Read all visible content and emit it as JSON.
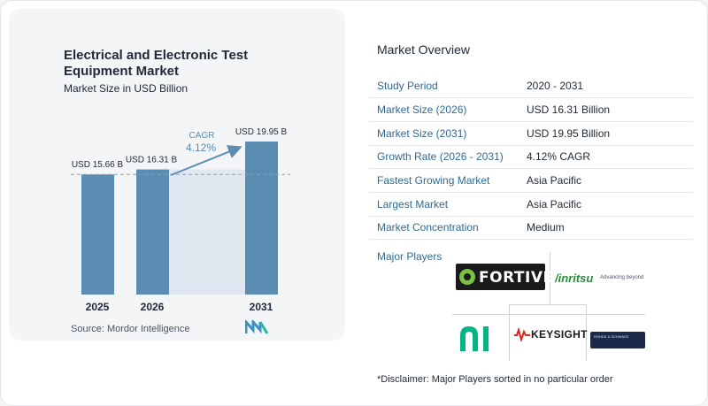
{
  "chart_data": {
    "type": "bar",
    "title": "Electrical and Electronic Test Equipment Market",
    "subtitle": "Market Size in USD Billion",
    "categories": [
      "2025",
      "2026",
      "2031"
    ],
    "values": [
      15.66,
      16.31,
      19.95
    ],
    "value_labels": [
      "USD 15.66 B",
      "USD 16.31 B",
      "USD 19.95 B"
    ],
    "cagr_label": "CAGR",
    "cagr_value": "4.12%",
    "bar_color": "#5b8db3",
    "shade_color": "#dfe8f0",
    "source": "Source:  Mordor Intelligence"
  },
  "overview": {
    "title": "Market Overview",
    "rows": [
      {
        "key": "Study Period",
        "value": "2020 - 2031"
      },
      {
        "key": "Market Size (2026)",
        "value": "USD 16.31 Billion"
      },
      {
        "key": "Market Size (2031)",
        "value": "USD 19.95 Billion"
      },
      {
        "key": "Growth Rate (2026 - 2031)",
        "value": "4.12% CAGR"
      },
      {
        "key": "Fastest Growing Market",
        "value": "Asia Pacific"
      },
      {
        "key": "Largest Market",
        "value": "Asia Pacific"
      },
      {
        "key": "Market Concentration",
        "value": "Medium"
      }
    ]
  },
  "players": {
    "title": "Major Players",
    "fortive": "FORTIVE",
    "anritsu": "/inritsu",
    "anritsu_tag": "Advancing beyond",
    "keysight": "KEYSIGHT",
    "rs": "ROHDE & SCHWARZ"
  },
  "disclaimer": "*Disclaimer: Major Players sorted in no particular order"
}
